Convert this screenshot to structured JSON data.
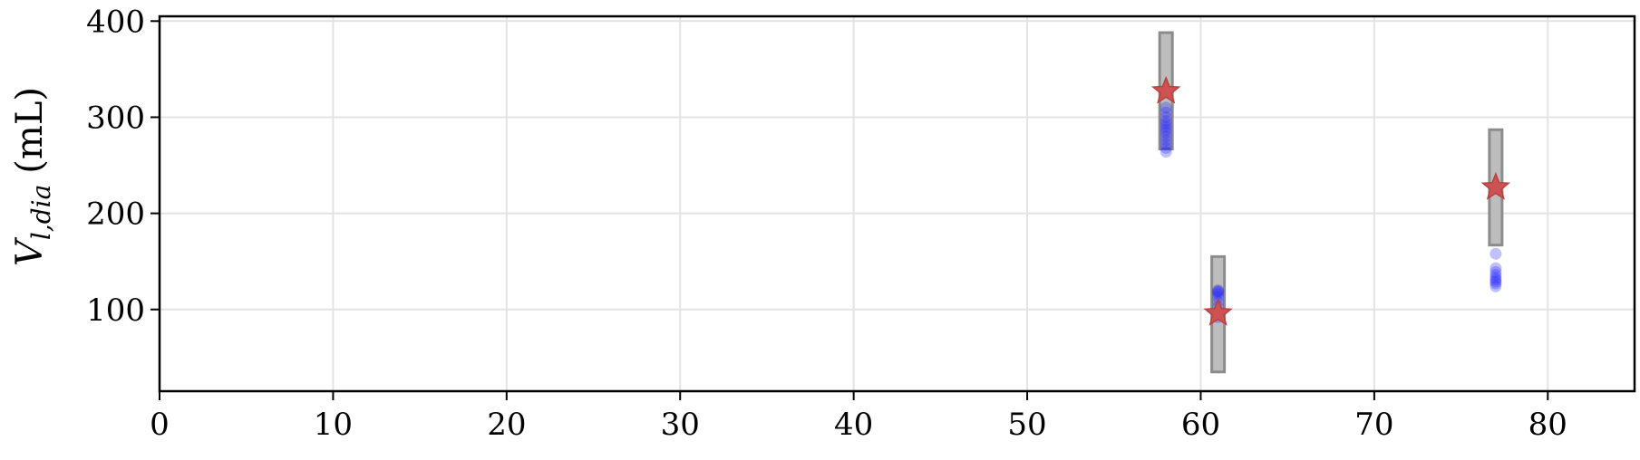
{
  "chart_data": {
    "type": "scatter",
    "xlim": [
      0,
      85
    ],
    "ylim": [
      15,
      405
    ],
    "x_ticks": [
      0,
      10,
      20,
      30,
      40,
      50,
      60,
      70,
      80
    ],
    "y_ticks": [
      100,
      200,
      300,
      400
    ],
    "ylabel_main": "V",
    "ylabel_sub": "l,dia",
    "ylabel_unit": "(mL)",
    "grid": true,
    "colors": {
      "box_fill": "#bdbdbd",
      "box_edge": "#8c8c8c",
      "star": "#cd5252",
      "dots": "#1f1fff",
      "grid": "#e3e3e3"
    },
    "groups": [
      {
        "x": 58,
        "range": [
          267,
          388
        ],
        "star": 327,
        "samples": [
          264,
          268,
          272,
          276,
          280,
          284,
          287,
          290,
          293,
          296,
          300,
          305,
          310
        ]
      },
      {
        "x": 61,
        "range": [
          35,
          155
        ],
        "star": 96,
        "samples": [
          92,
          98,
          103,
          108,
          113,
          116,
          118,
          119,
          120
        ]
      },
      {
        "x": 77,
        "range": [
          167,
          287
        ],
        "star": 227,
        "samples": [
          124,
          127,
          129,
          131,
          133,
          136,
          139,
          143,
          158
        ]
      }
    ]
  }
}
